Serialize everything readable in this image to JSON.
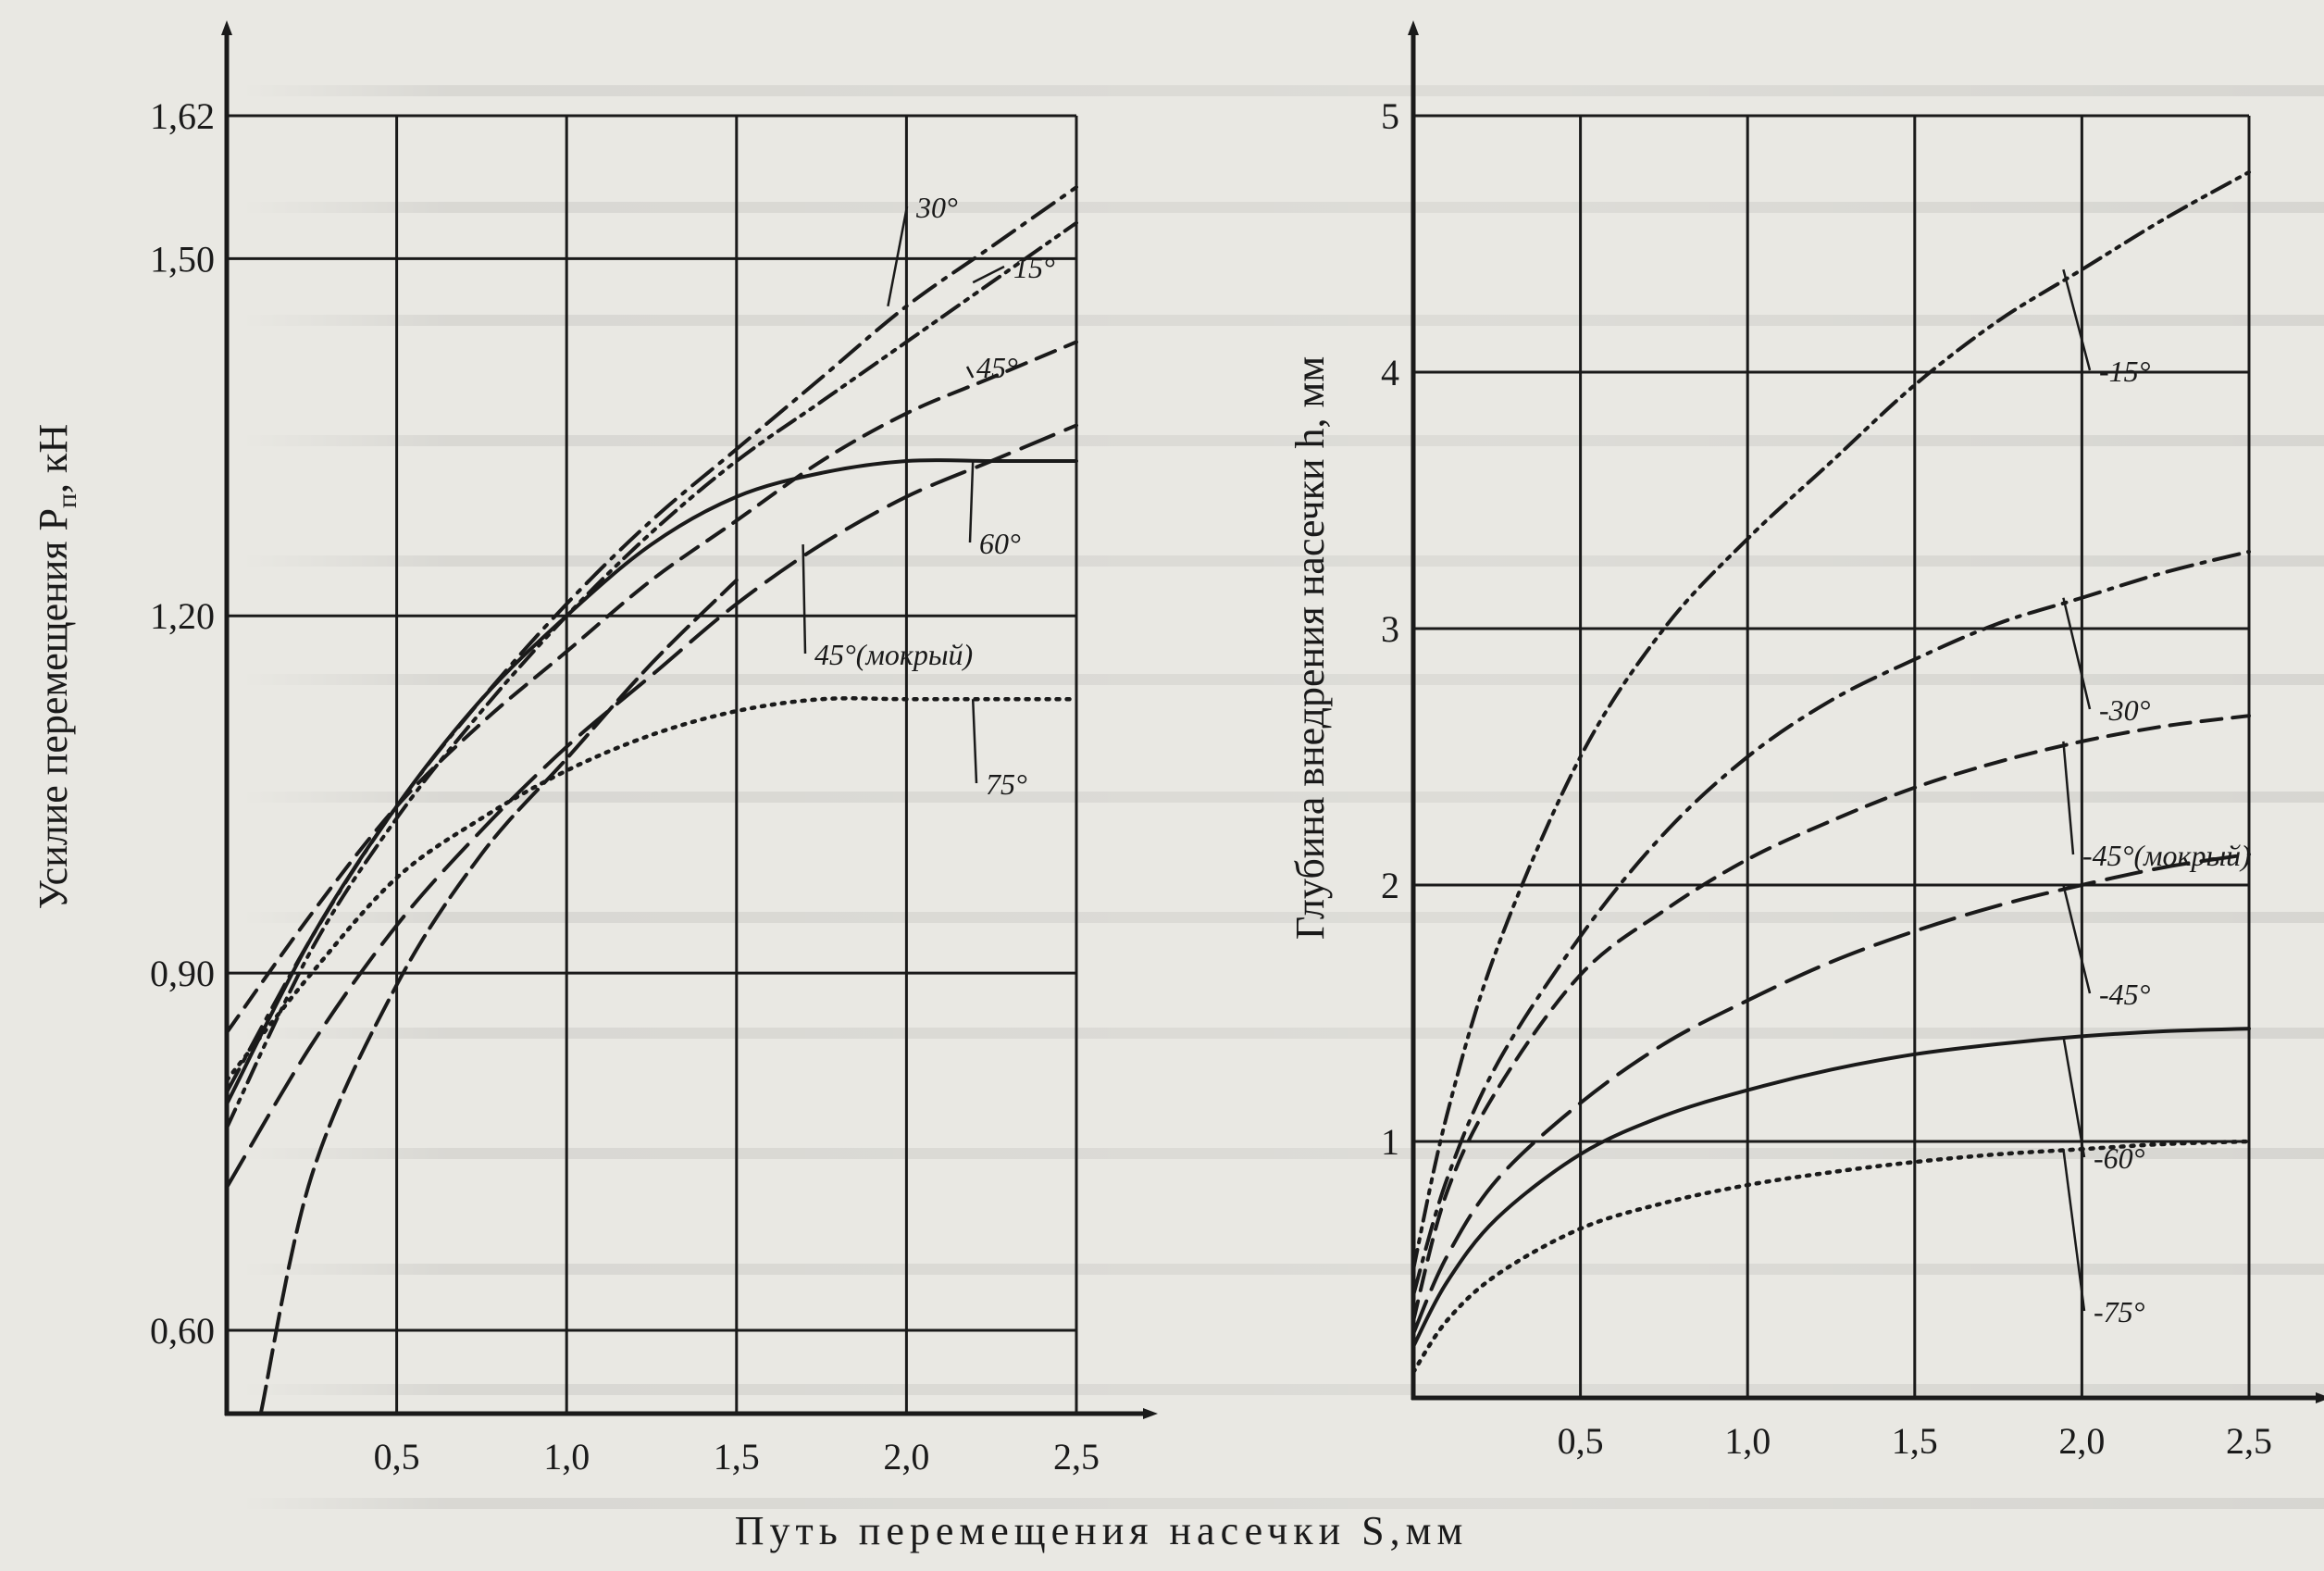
{
  "common_xlabel": "Путь перемещения насечки S,мм",
  "chart_data": [
    {
      "type": "line",
      "ylabel": "Усилие перемещения P",
      "ylabel_subscript": "п",
      "ylabel_unit": ", кН",
      "xlim": [
        0,
        2.5
      ],
      "ylim": [
        0.53,
        1.62
      ],
      "x_ticks": [
        "0,5",
        "1,0",
        "1,5",
        "2,0",
        "2,5"
      ],
      "x_tick_values": [
        0.5,
        1.0,
        1.5,
        2.0,
        2.5
      ],
      "y_ticks": [
        "0,60",
        "0,90",
        "1,20",
        "1,50",
        "1,62"
      ],
      "y_tick_values": [
        0.6,
        0.9,
        1.2,
        1.5,
        1.62
      ],
      "grid": true,
      "series": [
        {
          "name": "30°",
          "style": "dashdot",
          "x": [
            0.0,
            0.25,
            0.5,
            0.75,
            1.0,
            1.25,
            1.5,
            1.75,
            2.0,
            2.25,
            2.5
          ],
          "y": [
            0.8,
            0.93,
            1.04,
            1.13,
            1.21,
            1.28,
            1.34,
            1.4,
            1.46,
            1.51,
            1.56
          ]
        },
        {
          "name": "15°",
          "style": "dashdotdot",
          "x": [
            0.0,
            0.25,
            0.5,
            0.75,
            1.0,
            1.25,
            1.5,
            1.75,
            2.0,
            2.25,
            2.5
          ],
          "y": [
            0.77,
            0.92,
            1.03,
            1.12,
            1.2,
            1.27,
            1.33,
            1.38,
            1.43,
            1.48,
            1.53
          ]
        },
        {
          "name": "45°",
          "style": "dash",
          "x": [
            0.0,
            0.25,
            0.5,
            0.75,
            1.0,
            1.25,
            1.5,
            1.75,
            2.0,
            2.25,
            2.5
          ],
          "y": [
            0.85,
            0.95,
            1.04,
            1.11,
            1.17,
            1.23,
            1.28,
            1.33,
            1.37,
            1.4,
            1.43
          ]
        },
        {
          "name": "60°",
          "style": "solid",
          "x": [
            0.0,
            0.25,
            0.5,
            0.75,
            1.0,
            1.25,
            1.5,
            1.75,
            2.0,
            2.25,
            2.5
          ],
          "y": [
            0.79,
            0.93,
            1.04,
            1.13,
            1.2,
            1.26,
            1.3,
            1.32,
            1.33,
            1.33,
            1.33
          ]
        },
        {
          "name": "45°(мокрый)",
          "style": "longdash",
          "x": [
            0.0,
            0.25,
            0.5,
            0.75,
            1.0,
            1.25,
            1.5,
            1.75,
            2.0,
            2.25,
            2.5
          ],
          "y": [
            0.72,
            0.84,
            0.94,
            1.02,
            1.09,
            1.15,
            1.21,
            1.26,
            1.3,
            1.33,
            1.36
          ]
        },
        {
          "name": "75°",
          "style": "dotted",
          "x": [
            0.0,
            0.25,
            0.5,
            0.75,
            1.0,
            1.25,
            1.5,
            1.75,
            2.0,
            2.25,
            2.5
          ],
          "y": [
            0.81,
            0.9,
            0.98,
            1.03,
            1.07,
            1.1,
            1.12,
            1.13,
            1.13,
            1.13,
            1.13
          ]
        },
        {
          "name": "",
          "style": "longdash2",
          "x": [
            0.1,
            0.25,
            0.5,
            0.75,
            1.0,
            1.25,
            1.5
          ],
          "y": [
            0.53,
            0.73,
            0.89,
            1.0,
            1.08,
            1.16,
            1.23
          ]
        }
      ]
    },
    {
      "type": "line",
      "ylabel": "Глубина внедрения насечки h, мм",
      "xlim": [
        0,
        2.5
      ],
      "ylim": [
        0,
        5
      ],
      "x_ticks": [
        "0,5",
        "1,0",
        "1,5",
        "2,0",
        "2,5"
      ],
      "x_tick_values": [
        0.5,
        1.0,
        1.5,
        2.0,
        2.5
      ],
      "y_ticks": [
        "1",
        "2",
        "3",
        "4",
        "5"
      ],
      "y_tick_values": [
        1,
        2,
        3,
        4,
        5
      ],
      "grid": true,
      "series": [
        {
          "name": "-15°",
          "style": "dashdotdot",
          "x": [
            0.0,
            0.1,
            0.25,
            0.5,
            0.75,
            1.0,
            1.25,
            1.5,
            1.75,
            2.0,
            2.25,
            2.5
          ],
          "y": [
            0.5,
            1.1,
            1.75,
            2.5,
            3.0,
            3.35,
            3.65,
            3.95,
            4.2,
            4.4,
            4.6,
            4.78
          ]
        },
        {
          "name": "-30°",
          "style": "dashdot",
          "x": [
            0.0,
            0.1,
            0.25,
            0.5,
            0.75,
            1.0,
            1.25,
            1.5,
            1.75,
            2.0,
            2.25,
            2.5
          ],
          "y": [
            0.4,
            0.85,
            1.3,
            1.8,
            2.2,
            2.5,
            2.72,
            2.88,
            3.02,
            3.12,
            3.22,
            3.3
          ]
        },
        {
          "name": "-45°(мокрый)",
          "style": "dash",
          "x": [
            0.0,
            0.1,
            0.25,
            0.5,
            0.75,
            1.0,
            1.25,
            1.5,
            1.75,
            2.0,
            2.25,
            2.5
          ],
          "y": [
            0.3,
            0.8,
            1.2,
            1.65,
            1.9,
            2.1,
            2.25,
            2.38,
            2.48,
            2.56,
            2.62,
            2.66
          ]
        },
        {
          "name": "-45°",
          "style": "longdash",
          "x": [
            0.0,
            0.1,
            0.25,
            0.5,
            0.75,
            1.0,
            1.25,
            1.5,
            1.75,
            2.0,
            2.25,
            2.5
          ],
          "y": [
            0.25,
            0.55,
            0.85,
            1.15,
            1.38,
            1.55,
            1.7,
            1.82,
            1.92,
            2.0,
            2.07,
            2.12
          ]
        },
        {
          "name": "-60°",
          "style": "solid",
          "x": [
            0.0,
            0.1,
            0.25,
            0.5,
            0.75,
            1.0,
            1.25,
            1.5,
            1.75,
            2.0,
            2.25,
            2.5
          ],
          "y": [
            0.2,
            0.45,
            0.7,
            0.95,
            1.1,
            1.2,
            1.28,
            1.34,
            1.38,
            1.41,
            1.43,
            1.44
          ]
        },
        {
          "name": "-75°",
          "style": "dotted",
          "x": [
            0.0,
            0.1,
            0.25,
            0.5,
            0.75,
            1.0,
            1.25,
            1.5,
            1.75,
            2.0,
            2.25,
            2.5
          ],
          "y": [
            0.1,
            0.3,
            0.48,
            0.66,
            0.76,
            0.83,
            0.88,
            0.92,
            0.95,
            0.97,
            0.99,
            1.0
          ]
        }
      ]
    }
  ]
}
